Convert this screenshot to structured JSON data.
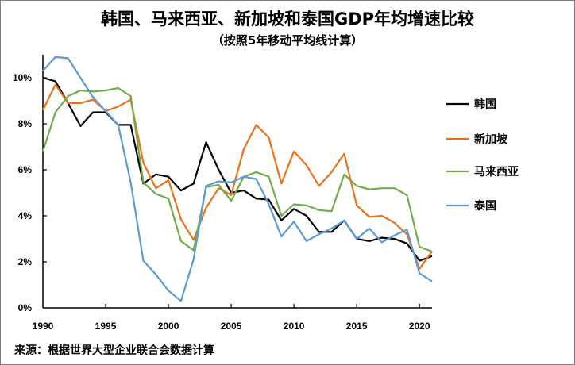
{
  "title": "韩国、马来西亚、新加坡和泰国GDP年均增速比较",
  "subtitle": "（按照5年移动平均线计算）",
  "source": "来源：根据世界大型企业联合会数据计算",
  "chart_data": {
    "type": "line",
    "title": "韩国、马来西亚、新加坡和泰国GDP年均增速比较",
    "subtitle": "（按照5年移动平均线计算）",
    "xlim": [
      1990,
      2021
    ],
    "ylim": [
      0,
      11
    ],
    "x_ticks": [
      "1990",
      "1995",
      "2000",
      "2005",
      "2010",
      "2015",
      "2020"
    ],
    "y_ticks": [
      "0%",
      "2%",
      "4%",
      "6%",
      "8%",
      "10%"
    ],
    "y_tick_values": [
      0,
      2,
      4,
      6,
      8,
      10
    ],
    "x_tick_values": [
      1990,
      1995,
      2000,
      2005,
      2010,
      2015,
      2020
    ],
    "grid": false,
    "legend_position": "right",
    "x": [
      1990,
      1991,
      1992,
      1993,
      1994,
      1995,
      1996,
      1997,
      1998,
      1999,
      2000,
      2001,
      2002,
      2003,
      2004,
      2005,
      2006,
      2007,
      2008,
      2009,
      2010,
      2011,
      2012,
      2013,
      2014,
      2015,
      2016,
      2017,
      2018,
      2019,
      2020,
      2021
    ],
    "series": [
      {
        "name": "韩国",
        "color": "#000000",
        "values": [
          10.0,
          9.85,
          8.9,
          7.9,
          8.5,
          8.5,
          7.95,
          7.95,
          5.4,
          5.8,
          5.7,
          5.1,
          5.4,
          7.2,
          6.0,
          5.0,
          5.1,
          4.75,
          4.7,
          3.8,
          4.3,
          4.0,
          3.3,
          3.3,
          3.8,
          3.0,
          2.9,
          3.05,
          3.0,
          2.8,
          2.05,
          2.25
        ]
      },
      {
        "name": "新加坡",
        "color": "#E8731D",
        "values": [
          8.6,
          9.7,
          8.9,
          8.9,
          9.05,
          8.55,
          8.75,
          9.05,
          6.3,
          5.2,
          5.55,
          3.85,
          2.95,
          4.35,
          5.2,
          4.9,
          6.9,
          7.95,
          7.4,
          5.4,
          6.8,
          6.2,
          5.3,
          5.9,
          6.7,
          4.45,
          3.95,
          4.0,
          3.7,
          3.2,
          1.7,
          2.45
        ]
      },
      {
        "name": "马来西亚",
        "color": "#70AD47",
        "values": [
          6.8,
          8.5,
          9.2,
          9.45,
          9.4,
          9.45,
          9.55,
          9.2,
          5.45,
          4.95,
          4.75,
          2.9,
          2.5,
          5.25,
          5.35,
          4.65,
          5.7,
          5.9,
          5.7,
          4.0,
          4.5,
          4.45,
          4.25,
          4.2,
          5.8,
          5.3,
          5.15,
          5.2,
          5.2,
          4.9,
          2.65,
          2.45
        ]
      },
      {
        "name": "泰国",
        "color": "#5B9BD5",
        "values": [
          10.3,
          10.9,
          10.85,
          10.0,
          9.15,
          8.55,
          7.95,
          5.45,
          2.05,
          1.45,
          0.75,
          0.3,
          2.1,
          5.3,
          5.5,
          5.45,
          5.7,
          5.6,
          4.5,
          3.1,
          3.75,
          2.9,
          3.2,
          3.45,
          3.8,
          3.0,
          3.45,
          2.85,
          3.15,
          3.4,
          1.5,
          1.15
        ]
      }
    ]
  }
}
